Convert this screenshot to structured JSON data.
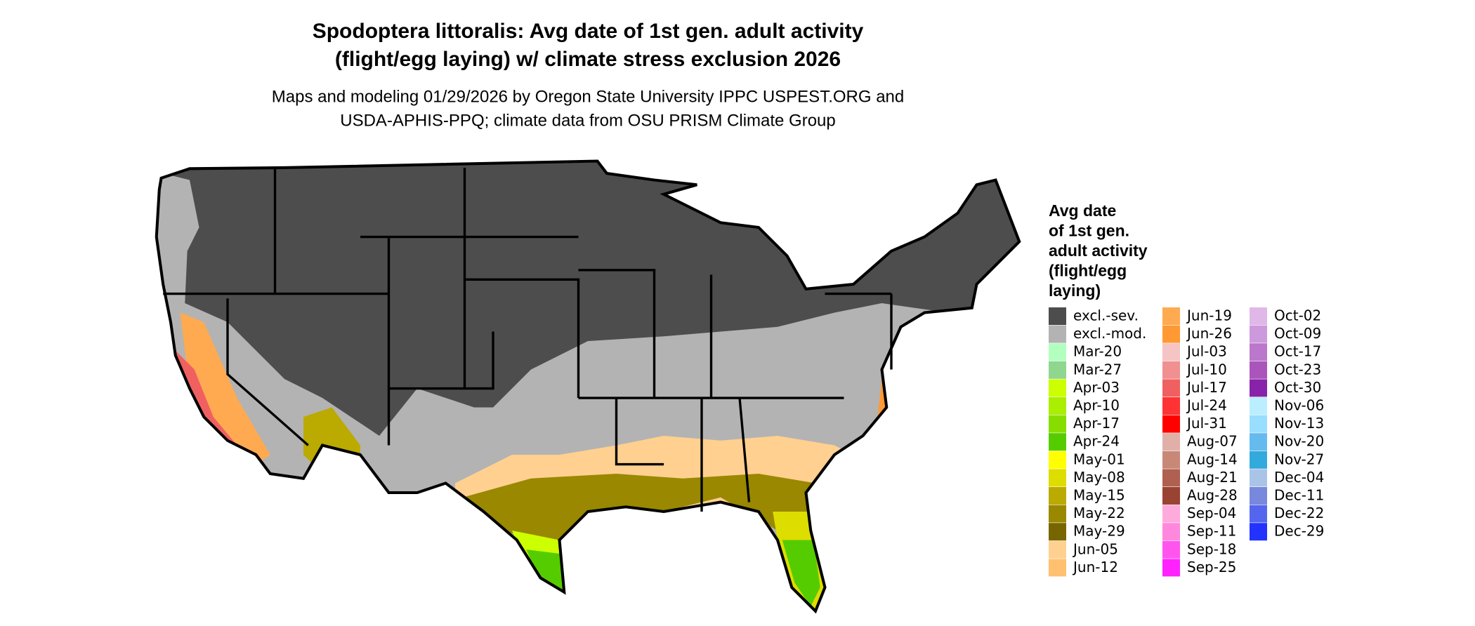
{
  "title": [
    "Spodoptera littoralis: Avg date of 1st gen. adult activity",
    "(flight/egg laying) w/ climate stress exclusion 2026"
  ],
  "subtitle": [
    "Maps and modeling 01/29/2026 by Oregon State University IPPC USPEST.ORG and",
    "USDA-APHIS-PPQ; climate data from OSU PRISM Climate Group"
  ],
  "legend": {
    "title": [
      "Avg date",
      "of 1st gen.",
      "adult activity",
      "(flight/egg",
      "laying)"
    ],
    "items": [
      {
        "label": "excl.-sev.",
        "color": "#4d4d4d"
      },
      {
        "label": "excl.-mod.",
        "color": "#b3b3b3"
      },
      {
        "label": "Mar-20",
        "color": "#b3ffc0"
      },
      {
        "label": "Mar-27",
        "color": "#8fd68f"
      },
      {
        "label": "Apr-03",
        "color": "#ccff00"
      },
      {
        "label": "Apr-10",
        "color": "#aaee00"
      },
      {
        "label": "Apr-17",
        "color": "#88dd00"
      },
      {
        "label": "Apr-24",
        "color": "#55cc00"
      },
      {
        "label": "May-01",
        "color": "#ffff00"
      },
      {
        "label": "May-08",
        "color": "#dddd00"
      },
      {
        "label": "May-15",
        "color": "#bbaa00"
      },
      {
        "label": "May-22",
        "color": "#998800"
      },
      {
        "label": "May-29",
        "color": "#776600"
      },
      {
        "label": "Jun-05",
        "color": "#ffd090"
      },
      {
        "label": "Jun-12",
        "color": "#ffc070"
      },
      {
        "label": "Jun-19",
        "color": "#ffaa50"
      },
      {
        "label": "Jun-26",
        "color": "#ff9933"
      },
      {
        "label": "Jul-03",
        "color": "#f5c5c5"
      },
      {
        "label": "Jul-10",
        "color": "#f09090"
      },
      {
        "label": "Jul-17",
        "color": "#f06060"
      },
      {
        "label": "Jul-24",
        "color": "#ff3333"
      },
      {
        "label": "Jul-31",
        "color": "#ff0000"
      },
      {
        "label": "Aug-07",
        "color": "#e0b0a8"
      },
      {
        "label": "Aug-14",
        "color": "#c88878"
      },
      {
        "label": "Aug-21",
        "color": "#b06050"
      },
      {
        "label": "Aug-28",
        "color": "#994433"
      },
      {
        "label": "Sep-04",
        "color": "#ffaadd"
      },
      {
        "label": "Sep-11",
        "color": "#ff88dd"
      },
      {
        "label": "Sep-18",
        "color": "#ff55ee"
      },
      {
        "label": "Sep-25",
        "color": "#ff22ff"
      },
      {
        "label": "Oct-02",
        "color": "#e0b8e8"
      },
      {
        "label": "Oct-09",
        "color": "#cc99dd"
      },
      {
        "label": "Oct-17",
        "color": "#bb77cc"
      },
      {
        "label": "Oct-23",
        "color": "#aa55bb"
      },
      {
        "label": "Oct-30",
        "color": "#8822aa"
      },
      {
        "label": "Nov-06",
        "color": "#bbeeff"
      },
      {
        "label": "Nov-13",
        "color": "#99ddff"
      },
      {
        "label": "Nov-20",
        "color": "#66bbee"
      },
      {
        "label": "Nov-27",
        "color": "#33aadd"
      },
      {
        "label": "Dec-04",
        "color": "#aac4e8"
      },
      {
        "label": "Dec-11",
        "color": "#7788dd"
      },
      {
        "label": "Dec-22",
        "color": "#5566ee"
      },
      {
        "label": "Dec-29",
        "color": "#2233ff"
      }
    ]
  }
}
